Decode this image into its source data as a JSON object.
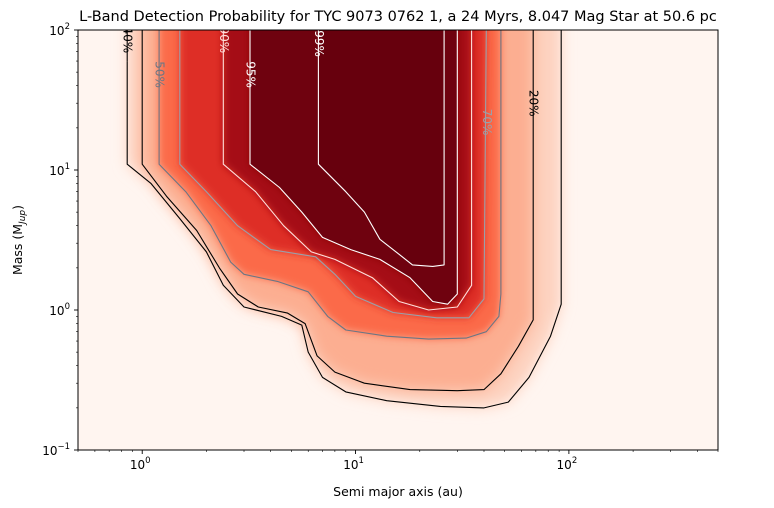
{
  "chart_data": {
    "type": "heatmap",
    "title": "L-Band Detection Probability for TYC 9073 0762 1, a 24 Myrs, 8.047 Mag Star at 50.6 pc",
    "xlabel": "Semi major axis (au)",
    "ylabel": "Mass (M",
    "ylabel_sub": "Jup",
    "ylabel_close": ")",
    "x_scale": "log",
    "y_scale": "log",
    "xlim": [
      0.5,
      500
    ],
    "ylim": [
      0.1,
      100
    ],
    "x_ticks": [
      {
        "value": 1,
        "base": "10",
        "exp": "0"
      },
      {
        "value": 10,
        "base": "10",
        "exp": "1"
      },
      {
        "value": 100,
        "base": "10",
        "exp": "2"
      }
    ],
    "y_ticks": [
      {
        "value": 0.1,
        "base": "10",
        "exp": "−1"
      },
      {
        "value": 1,
        "base": "10",
        "exp": "0"
      },
      {
        "value": 10,
        "base": "10",
        "exp": "1"
      },
      {
        "value": 100,
        "base": "10",
        "exp": "2"
      }
    ],
    "colormap": "Reds",
    "colors": {
      "low": "#fff5f0",
      "high": "#67000d"
    },
    "contours": [
      {
        "level": 20,
        "label": "20%",
        "color": "#000000",
        "points": [
          [
            0.85,
            60
          ],
          [
            0.85,
            11
          ],
          [
            1.1,
            8
          ],
          [
            1.5,
            4.5
          ],
          [
            2.0,
            2.6
          ],
          [
            2.4,
            1.5
          ],
          [
            3.0,
            1.05
          ],
          [
            4.5,
            0.9
          ],
          [
            5.6,
            0.78
          ],
          [
            6.0,
            0.5
          ],
          [
            7.0,
            0.33
          ],
          [
            9.0,
            0.26
          ],
          [
            14,
            0.225
          ],
          [
            25,
            0.205
          ],
          [
            40,
            0.2
          ],
          [
            52,
            0.22
          ],
          [
            65,
            0.33
          ],
          [
            82,
            0.65
          ],
          [
            92,
            1.1
          ],
          [
            92,
            100
          ]
        ],
        "label_pos": [
          68,
          30
        ],
        "label_rot": 90
      },
      {
        "level": 30,
        "label": "",
        "color": "#000000",
        "points": [
          [
            1.0,
            100
          ],
          [
            1.0,
            11
          ],
          [
            1.3,
            6.5
          ],
          [
            1.8,
            3.7
          ],
          [
            2.3,
            2.0
          ],
          [
            2.8,
            1.3
          ],
          [
            3.5,
            1.05
          ],
          [
            4.8,
            0.95
          ],
          [
            5.8,
            0.8
          ],
          [
            6.6,
            0.47
          ],
          [
            8.0,
            0.36
          ],
          [
            11,
            0.3
          ],
          [
            18,
            0.27
          ],
          [
            30,
            0.265
          ],
          [
            40,
            0.27
          ],
          [
            48,
            0.35
          ],
          [
            58,
            0.55
          ],
          [
            68,
            0.85
          ],
          [
            68,
            100
          ]
        ],
        "label_pos": null,
        "label_rot": 90
      },
      {
        "level": 40,
        "label": "40%",
        "color": "#000000",
        "points": [
          [
            0.85,
            100
          ],
          [
            0.85,
            60
          ]
        ],
        "label_pos": [
          0.85,
          85
        ],
        "label_rot": 90
      },
      {
        "level": 50,
        "label": "50%",
        "color": "#6b7684",
        "points": [
          [
            1.2,
            100
          ],
          [
            1.2,
            11
          ],
          [
            1.6,
            7.0
          ],
          [
            2.1,
            4.0
          ],
          [
            2.6,
            2.2
          ],
          [
            3.0,
            1.8
          ],
          [
            4.3,
            1.6
          ],
          [
            6.0,
            1.35
          ],
          [
            7.4,
            0.9
          ],
          [
            9.0,
            0.72
          ],
          [
            14,
            0.65
          ],
          [
            22,
            0.62
          ],
          [
            33,
            0.63
          ],
          [
            41,
            0.7
          ],
          [
            47,
            0.9
          ],
          [
            48,
            1.3
          ],
          [
            48,
            100
          ]
        ],
        "label_pos": [
          1.2,
          48
        ],
        "label_rot": 90
      },
      {
        "level": 70,
        "label": "70%",
        "color": "#9aa0aa",
        "points": [
          [
            1.5,
            100
          ],
          [
            1.5,
            11
          ],
          [
            2.0,
            7.0
          ],
          [
            2.8,
            4.0
          ],
          [
            4.0,
            2.7
          ],
          [
            6.5,
            2.4
          ],
          [
            8.0,
            1.8
          ],
          [
            10,
            1.25
          ],
          [
            15,
            0.96
          ],
          [
            24,
            0.88
          ],
          [
            34,
            0.88
          ],
          [
            40,
            1.2
          ],
          [
            41,
            100
          ]
        ],
        "label_pos": [
          41,
          22
        ],
        "label_rot": 90
      },
      {
        "level": 90,
        "label": "90%",
        "color": "#ffe0dc",
        "points": [
          [
            2.4,
            100
          ],
          [
            2.4,
            11
          ],
          [
            3.4,
            7.0
          ],
          [
            4.6,
            4.0
          ],
          [
            6.2,
            2.6
          ],
          [
            8.0,
            2.3
          ],
          [
            12,
            1.7
          ],
          [
            16,
            1.15
          ],
          [
            22,
            1.0
          ],
          [
            30,
            1.05
          ],
          [
            35,
            1.5
          ],
          [
            35,
            100
          ]
        ],
        "label_pos": [
          2.4,
          85
        ],
        "label_rot": 90
      },
      {
        "level": 95,
        "label": "95%",
        "color": "#ffffff",
        "points": [
          [
            3.2,
            100
          ],
          [
            3.2,
            11
          ],
          [
            4.4,
            7.5
          ],
          [
            5.6,
            5.0
          ],
          [
            7.0,
            3.3
          ],
          [
            9.5,
            2.7
          ],
          [
            13,
            2.3
          ],
          [
            18,
            1.7
          ],
          [
            23,
            1.15
          ],
          [
            27,
            1.1
          ],
          [
            30,
            1.3
          ],
          [
            30,
            100
          ]
        ],
        "label_pos": [
          3.2,
          48
        ],
        "label_rot": 90
      },
      {
        "level": 99,
        "label": "99%",
        "color": "#ffffff",
        "points": [
          [
            6.7,
            100
          ],
          [
            6.7,
            11
          ],
          [
            9.0,
            7.0
          ],
          [
            11,
            5.0
          ],
          [
            13,
            3.2
          ],
          [
            16,
            2.5
          ],
          [
            18.5,
            2.1
          ],
          [
            23,
            2.05
          ],
          [
            26,
            2.1
          ],
          [
            26,
            100
          ]
        ],
        "label_pos": [
          6.7,
          80
        ],
        "label_rot": 90
      }
    ]
  }
}
